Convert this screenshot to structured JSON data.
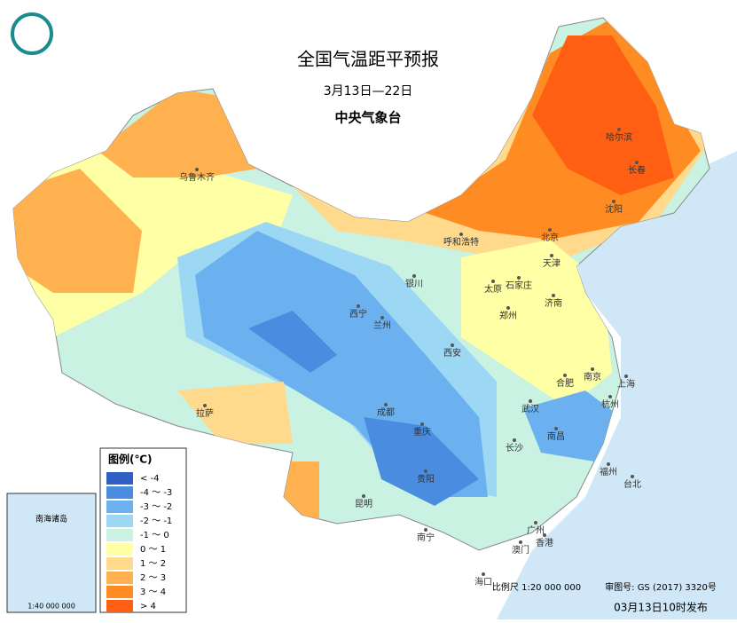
{
  "header": {
    "title": "全国气温距平预报",
    "period": "3月13日—22日",
    "issuer": "中央气象台"
  },
  "legend": {
    "title": "图例(℃)",
    "items": [
      {
        "label": "< -4",
        "color": "#2f5fc4"
      },
      {
        "label": "-4 ～ -3",
        "color": "#4a8de0"
      },
      {
        "label": "-3 ～ -2",
        "color": "#6cb1ef"
      },
      {
        "label": "-2 ～ -1",
        "color": "#9cd7f4"
      },
      {
        "label": "-1 ～ 0",
        "color": "#c9f2e2"
      },
      {
        "label": "0 ～ 1",
        "color": "#ffffa6"
      },
      {
        "label": "1 ～ 2",
        "color": "#ffd98c"
      },
      {
        "label": "2 ～ 3",
        "color": "#ffb14f"
      },
      {
        "label": "3 ～ 4",
        "color": "#ff8c22"
      },
      {
        "label": "> 4",
        "color": "#ff5f12"
      }
    ]
  },
  "cities": [
    "乌鲁木齐",
    "哈尔滨",
    "长春",
    "沈阳",
    "呼和浩特",
    "北京",
    "天津",
    "银川",
    "太原",
    "石家庄",
    "济南",
    "西宁",
    "兰州",
    "郑州",
    "西安",
    "合肥",
    "南京",
    "上海",
    "拉萨",
    "成都",
    "重庆",
    "武汉",
    "杭州",
    "南昌",
    "长沙",
    "贵阳",
    "福州",
    "台北",
    "昆明",
    "南宁",
    "广州",
    "澳门",
    "香港",
    "海口"
  ],
  "inset": {
    "label": "南海诸岛",
    "scale": "1:40 000 000"
  },
  "footer": {
    "scale": "比例尺 1:20 000 000",
    "approval": "审图号: GS (2017) 3320号",
    "issued": "03月13日10时发布"
  }
}
